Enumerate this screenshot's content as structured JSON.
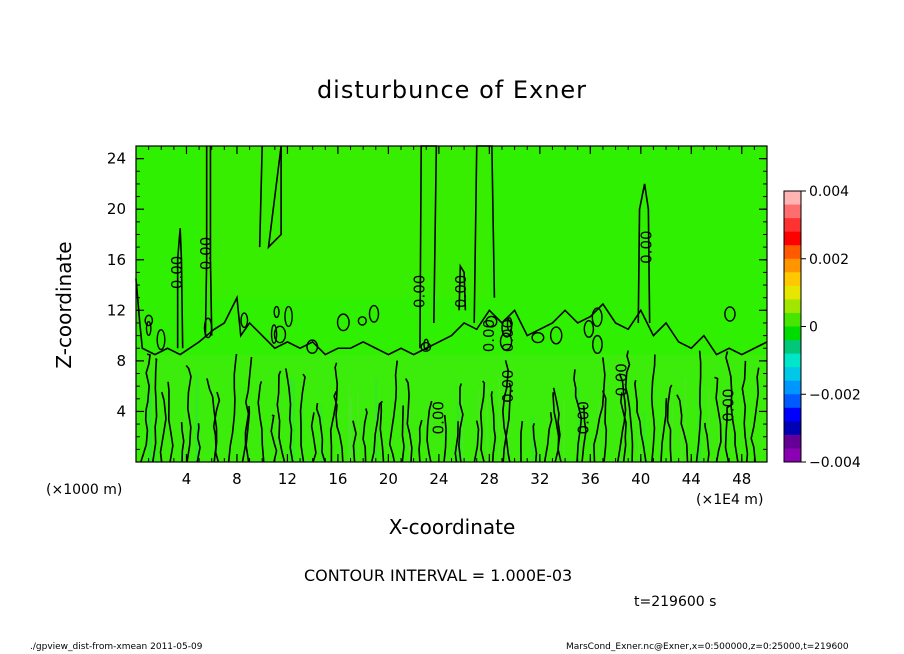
{
  "chart_data": {
    "type": "contour",
    "title": "disturbunce of Exner",
    "xlabel": "X-coordinate",
    "ylabel": "Z-coordinate",
    "x_unit_label": "(×1E4 m)",
    "y_unit_label": "(×1000 m)",
    "xlim": [
      0,
      50
    ],
    "ylim": [
      0,
      25
    ],
    "x_ticks": [
      4,
      8,
      12,
      16,
      20,
      24,
      28,
      32,
      36,
      40,
      44,
      48
    ],
    "y_ticks": [
      4,
      8,
      12,
      16,
      20,
      24
    ],
    "colorbar": {
      "range": [
        -0.004,
        0.004
      ],
      "tick_labels": [
        "0.004",
        "0.002",
        "0",
        "−0.002",
        "−0.004"
      ],
      "colors": [
        "#ffb4b4",
        "#ff6e6e",
        "#ff3232",
        "#ff0000",
        "#ff5a00",
        "#ff9600",
        "#ffc800",
        "#e6e600",
        "#a0e600",
        "#46e600",
        "#00dc00",
        "#00c878",
        "#00e6c8",
        "#00c8e6",
        "#0096ff",
        "#005aff",
        "#0000ff",
        "#0000b4",
        "#640096",
        "#8c00b4"
      ]
    },
    "contour_interval_text": "CONTOUR INTERVAL = 1.000E-03",
    "contour_labels": [
      {
        "x": 3.3,
        "z": 15.0,
        "text": "0.00"
      },
      {
        "x": 5.6,
        "z": 16.5,
        "text": "0.00"
      },
      {
        "x": 22.5,
        "z": 13.5,
        "text": "0.00"
      },
      {
        "x": 25.8,
        "z": 13.5,
        "text": "0.00"
      },
      {
        "x": 28.0,
        "z": 10.0,
        "text": "0.00"
      },
      {
        "x": 29.5,
        "z": 10.0,
        "text": "0.00"
      },
      {
        "x": 29.5,
        "z": 6.0,
        "text": "0.00"
      },
      {
        "x": 24.0,
        "z": 3.5,
        "text": "0.00"
      },
      {
        "x": 35.5,
        "z": 3.5,
        "text": "0.00"
      },
      {
        "x": 38.5,
        "z": 6.5,
        "text": "0.00"
      },
      {
        "x": 40.5,
        "z": 17.0,
        "text": "0.00"
      },
      {
        "x": 47.0,
        "z": 4.5,
        "text": "0.00"
      }
    ]
  },
  "time_label": "t=219600 s",
  "footer": {
    "left": "./gpview_dist-from-xmean   2011-05-09",
    "right": "MarsCond_Exner.nc@Exner,x=0:500000,z=0:25000,t=219600"
  }
}
